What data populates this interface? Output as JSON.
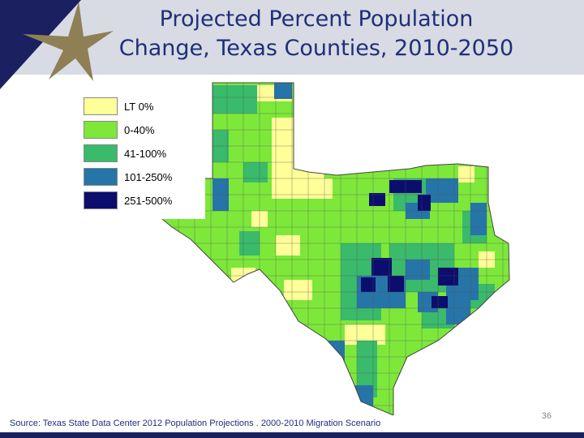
{
  "slide": {
    "title_line1": "Projected Percent Population",
    "title_line2": "Change, Texas Counties, 2010-2050",
    "source": "Source: Texas State Data Center 2012 Population Projections . 2000-2010 Migration Scenario",
    "slide_number": "36"
  },
  "colors": {
    "header_band": "#d8dbe3",
    "navy": "#1a2060",
    "gold": "#8f7f55",
    "title": "#1f2f7a"
  },
  "legend": [
    {
      "label": "LT 0%",
      "color": "#ffff99"
    },
    {
      "label": "0-40%",
      "color": "#7de83a"
    },
    {
      "label": "41-100%",
      "color": "#3aba6b"
    },
    {
      "label": "101-250%",
      "color": "#2675a8"
    },
    {
      "label": "251-500%",
      "color": "#0c0e6e"
    }
  ]
}
